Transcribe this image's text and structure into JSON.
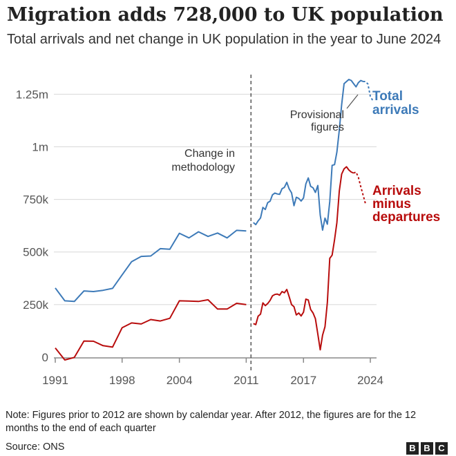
{
  "title": "Migration adds 728,000 to UK population",
  "subtitle": "Total arrivals and net change in UK population in the year to June 2024",
  "chart_data": {
    "type": "line",
    "xlim": [
      1991,
      2024
    ],
    "ylim": [
      0,
      1320000
    ],
    "x_ticks": [
      1991,
      1998,
      2004,
      2011,
      2017,
      2024
    ],
    "y_ticks": [
      0,
      250000,
      500000,
      750000,
      1000000,
      1250000
    ],
    "y_tick_labels": [
      "0",
      "250k",
      "500k",
      "750k",
      "1m",
      "1.25m"
    ],
    "grid": "horizontal",
    "methodology_break_x": 2011.5,
    "methodology_label": "Change in methodology",
    "provisional_label": "Provisional figures",
    "series": [
      {
        "name": "Total arrivals",
        "color": "#3d7ab8",
        "calendar_year": {
          "x": [
            1991,
            1992,
            1993,
            1994,
            1995,
            1996,
            1997,
            1998,
            1999,
            2000,
            2001,
            2002,
            2003,
            2004,
            2005,
            2006,
            2007,
            2008,
            2009,
            2010,
            2011
          ],
          "y": [
            329000,
            268000,
            265000,
            315000,
            312000,
            318000,
            327000,
            391000,
            454000,
            479000,
            481000,
            516000,
            513000,
            589000,
            567000,
            596000,
            574000,
            590000,
            567000,
            603000,
            600000
          ]
        },
        "quarterly": {
          "x": [
            2011.75,
            2012.0,
            2012.25,
            2012.5,
            2012.75,
            2013.0,
            2013.25,
            2013.5,
            2013.75,
            2014.0,
            2014.25,
            2014.5,
            2014.75,
            2015.0,
            2015.25,
            2015.5,
            2015.75,
            2016.0,
            2016.25,
            2016.5,
            2016.75,
            2017.0,
            2017.25,
            2017.5,
            2017.75,
            2018.0,
            2018.25,
            2018.5,
            2018.75,
            2019.0,
            2019.25,
            2019.5,
            2019.75,
            2020.0,
            2020.25,
            2020.5,
            2020.75,
            2021.0,
            2021.25,
            2021.5,
            2021.75,
            2022.0,
            2022.25,
            2022.5,
            2022.75,
            2023.0,
            2023.25
          ],
          "y": [
            640000,
            630000,
            648000,
            662000,
            712000,
            702000,
            735000,
            741000,
            772000,
            780000,
            776000,
            774000,
            801000,
            807000,
            831000,
            800000,
            781000,
            720000,
            760000,
            755000,
            742000,
            757000,
            824000,
            852000,
            812000,
            805000,
            783000,
            816000,
            675000,
            604000,
            661000,
            632000,
            740000,
            912000,
            915000,
            975000,
            1080000,
            1200000,
            1300000,
            1310000,
            1320000,
            1315000,
            1300000,
            1285000,
            1305000,
            1315000,
            1310000
          ]
        },
        "provisional_x": [
          2023.25,
          2023.5,
          2023.75,
          2024.0,
          2024.25
        ],
        "provisional_y": [
          1310000,
          1310000,
          1298000,
          1240000,
          1220000
        ]
      },
      {
        "name": "Arrivals minus departures",
        "color": "#b80c0c",
        "calendar_year": {
          "x": [
            1991,
            1992,
            1993,
            1994,
            1995,
            1996,
            1997,
            1998,
            1999,
            2000,
            2001,
            2002,
            2003,
            2004,
            2005,
            2006,
            2007,
            2008,
            2009,
            2010,
            2011
          ],
          "y": [
            44000,
            -13000,
            -1000,
            77000,
            76000,
            55000,
            48000,
            140000,
            163000,
            158000,
            179000,
            172000,
            185000,
            268000,
            267000,
            265000,
            273000,
            229000,
            229000,
            256000,
            250000
          ]
        },
        "quarterly": {
          "x": [
            2011.75,
            2012.0,
            2012.25,
            2012.5,
            2012.75,
            2013.0,
            2013.25,
            2013.5,
            2013.75,
            2014.0,
            2014.25,
            2014.5,
            2014.75,
            2015.0,
            2015.25,
            2015.5,
            2015.75,
            2016.0,
            2016.25,
            2016.5,
            2016.75,
            2017.0,
            2017.25,
            2017.5,
            2017.75,
            2018.0,
            2018.25,
            2018.5,
            2018.75,
            2019.0,
            2019.25,
            2019.5,
            2019.75,
            2020.0,
            2020.25,
            2020.5,
            2020.75,
            2021.0,
            2021.25,
            2021.5,
            2021.75,
            2022.0,
            2022.25
          ],
          "y": [
            160000,
            155000,
            195000,
            205000,
            258000,
            245000,
            255000,
            270000,
            292000,
            298000,
            300000,
            295000,
            312000,
            306000,
            322000,
            288000,
            250000,
            240000,
            201000,
            210000,
            196000,
            214000,
            276000,
            272000,
            227000,
            210000,
            183000,
            110000,
            35000,
            105000,
            145000,
            260000,
            470000,
            485000,
            558000,
            640000,
            790000,
            870000,
            895000,
            905000,
            890000,
            880000,
            875000
          ]
        },
        "provisional_x": [
          2022.25,
          2022.5,
          2022.75,
          2023.0,
          2023.25,
          2023.5
        ],
        "provisional_y": [
          875000,
          880000,
          855000,
          810000,
          770000,
          728000
        ]
      }
    ],
    "series_labels": [
      {
        "lines": [
          "Total",
          "arrivals"
        ],
        "color": "#3d7ab8"
      },
      {
        "lines": [
          "Arrivals",
          "minus",
          "departures"
        ],
        "color": "#b80c0c"
      }
    ]
  },
  "note": "Note: Figures prior to 2012 are shown by calendar year. After 2012, the figures are for the 12 months to the end of each quarter",
  "source": "Source: ONS",
  "logo": [
    "B",
    "B",
    "C"
  ]
}
